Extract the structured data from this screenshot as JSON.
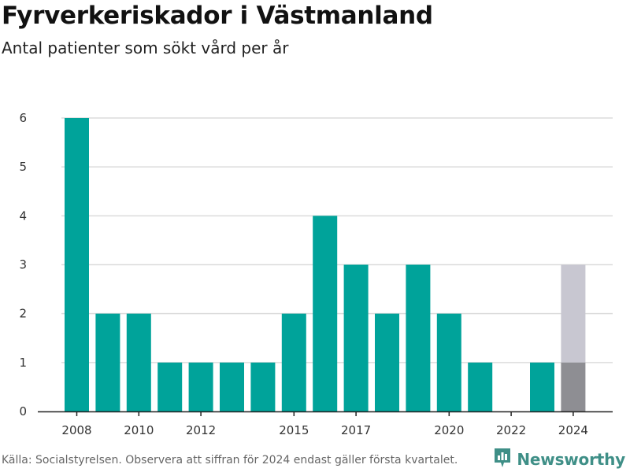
{
  "title": "Fyrverkeriskador i Västmanland",
  "subtitle": "Antal patienter som sökt vård per år",
  "footer": "Källa: Socialstyrelsen. Observera att siffran för 2024 endast gäller första kvartalet.",
  "brand": {
    "name": "Newsworthy",
    "icon": "newsworthy-logo-icon",
    "color": "#3f8f87"
  },
  "colors": {
    "bar": "#00a39a",
    "bar_partial": "#8e8e93",
    "bar_expected": "#c8c7d1",
    "grid": "#dcdcdc",
    "axis": "#222222"
  },
  "chart_data": {
    "type": "bar",
    "title": "Fyrverkeriskador i Västmanland",
    "subtitle": "Antal patienter som sökt vård per år",
    "xlabel": "",
    "ylabel": "",
    "ylim": [
      0,
      6
    ],
    "yticks": [
      0,
      1,
      2,
      3,
      4,
      5,
      6
    ],
    "xticks": [
      2008,
      2010,
      2012,
      2015,
      2017,
      2020,
      2022,
      2024
    ],
    "grid": true,
    "x": [
      2008,
      2009,
      2010,
      2011,
      2012,
      2013,
      2014,
      2015,
      2016,
      2017,
      2018,
      2019,
      2020,
      2021,
      2022,
      2023,
      2024
    ],
    "values": [
      6,
      2,
      2,
      1,
      1,
      1,
      1,
      2,
      4,
      3,
      2,
      3,
      2,
      1,
      0,
      1,
      1
    ],
    "partial_year": {
      "x": 2024,
      "value": 1,
      "stacked_total": 3
    }
  }
}
